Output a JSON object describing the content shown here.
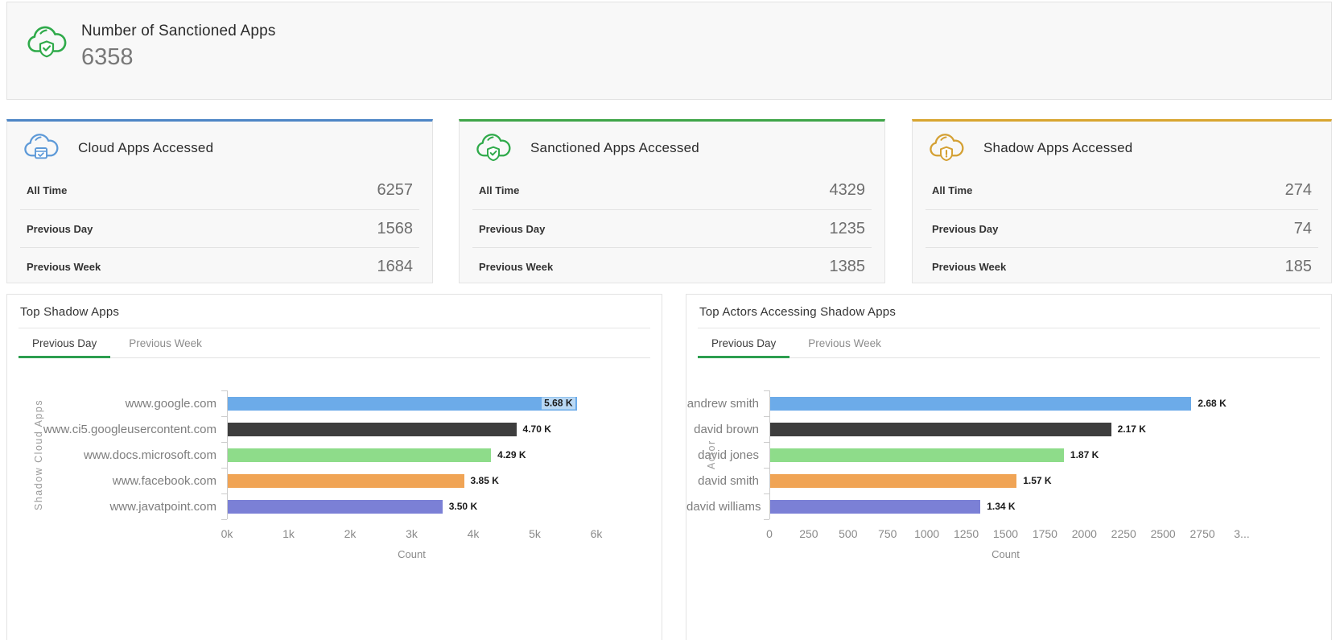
{
  "banner": {
    "title": "Number of Sanctioned Apps",
    "value": "6358",
    "icon": "cloud-shield-check-icon",
    "accent_color": "#2faa4a"
  },
  "stat_cards": [
    {
      "title": "Cloud Apps Accessed",
      "icon": "cloud-app-check-icon",
      "accent_color": "#4d86c6",
      "rows": [
        {
          "label": "All Time",
          "value": "6257"
        },
        {
          "label": "Previous Day",
          "value": "1568"
        },
        {
          "label": "Previous Week",
          "value": "1684"
        }
      ]
    },
    {
      "title": "Sanctioned Apps Accessed",
      "icon": "cloud-shield-check-icon",
      "accent_color": "#3fa548",
      "rows": [
        {
          "label": "All Time",
          "value": "4329"
        },
        {
          "label": "Previous Day",
          "value": "1235"
        },
        {
          "label": "Previous Week",
          "value": "1385"
        }
      ]
    },
    {
      "title": "Shadow Apps Accessed",
      "icon": "cloud-shield-alert-icon",
      "accent_color": "#d8a530",
      "rows": [
        {
          "label": "All Time",
          "value": "274"
        },
        {
          "label": "Previous Day",
          "value": "74"
        },
        {
          "label": "Previous Week",
          "value": "185"
        }
      ]
    }
  ],
  "charts": [
    {
      "title": "Top Shadow Apps",
      "tabs": [
        {
          "label": "Previous Day",
          "active": true
        },
        {
          "label": "Previous Week",
          "active": false
        }
      ],
      "chart_data": {
        "type": "bar",
        "orientation": "horizontal",
        "categories": [
          "www.google.com",
          "www.ci5.googleusercontent.com",
          "www.docs.microsoft.com",
          "www.facebook.com",
          "www.javatpoint.com"
        ],
        "values": [
          5680,
          4700,
          4290,
          3850,
          3500
        ],
        "value_labels": [
          "5.68 K",
          "4.70 K",
          "4.29 K",
          "3.85 K",
          "3.50 K"
        ],
        "bar_colors": [
          "#6cabe9",
          "#3d3d3d",
          "#8edc8a",
          "#f0a455",
          "#7b80d6"
        ],
        "xlabel": "Count",
        "ylabel": "Shadow Cloud Apps",
        "xlim": [
          0,
          6000
        ],
        "x_tick_labels": [
          "0k",
          "1k",
          "2k",
          "3k",
          "4k",
          "5k",
          "6k"
        ],
        "grid": false,
        "legend": false
      }
    },
    {
      "title": "Top Actors Accessing Shadow Apps",
      "tabs": [
        {
          "label": "Previous Day",
          "active": true
        },
        {
          "label": "Previous Week",
          "active": false
        }
      ],
      "chart_data": {
        "type": "bar",
        "orientation": "horizontal",
        "categories": [
          "andrew smith",
          "david brown",
          "david jones",
          "david smith",
          "david williams"
        ],
        "values": [
          2680,
          2170,
          1870,
          1570,
          1340
        ],
        "value_labels": [
          "2.68 K",
          "2.17 K",
          "1.87 K",
          "1.57 K",
          "1.34 K"
        ],
        "bar_colors": [
          "#6cabe9",
          "#3d3d3d",
          "#8edc8a",
          "#f0a455",
          "#7b80d6"
        ],
        "xlabel": "Count",
        "ylabel": "Actor",
        "xlim": [
          0,
          3000
        ],
        "x_tick_labels": [
          "0",
          "250",
          "500",
          "750",
          "1000",
          "1250",
          "1500",
          "1750",
          "2000",
          "2250",
          "2500",
          "2750",
          "3..."
        ],
        "grid": false,
        "legend": false
      }
    }
  ]
}
